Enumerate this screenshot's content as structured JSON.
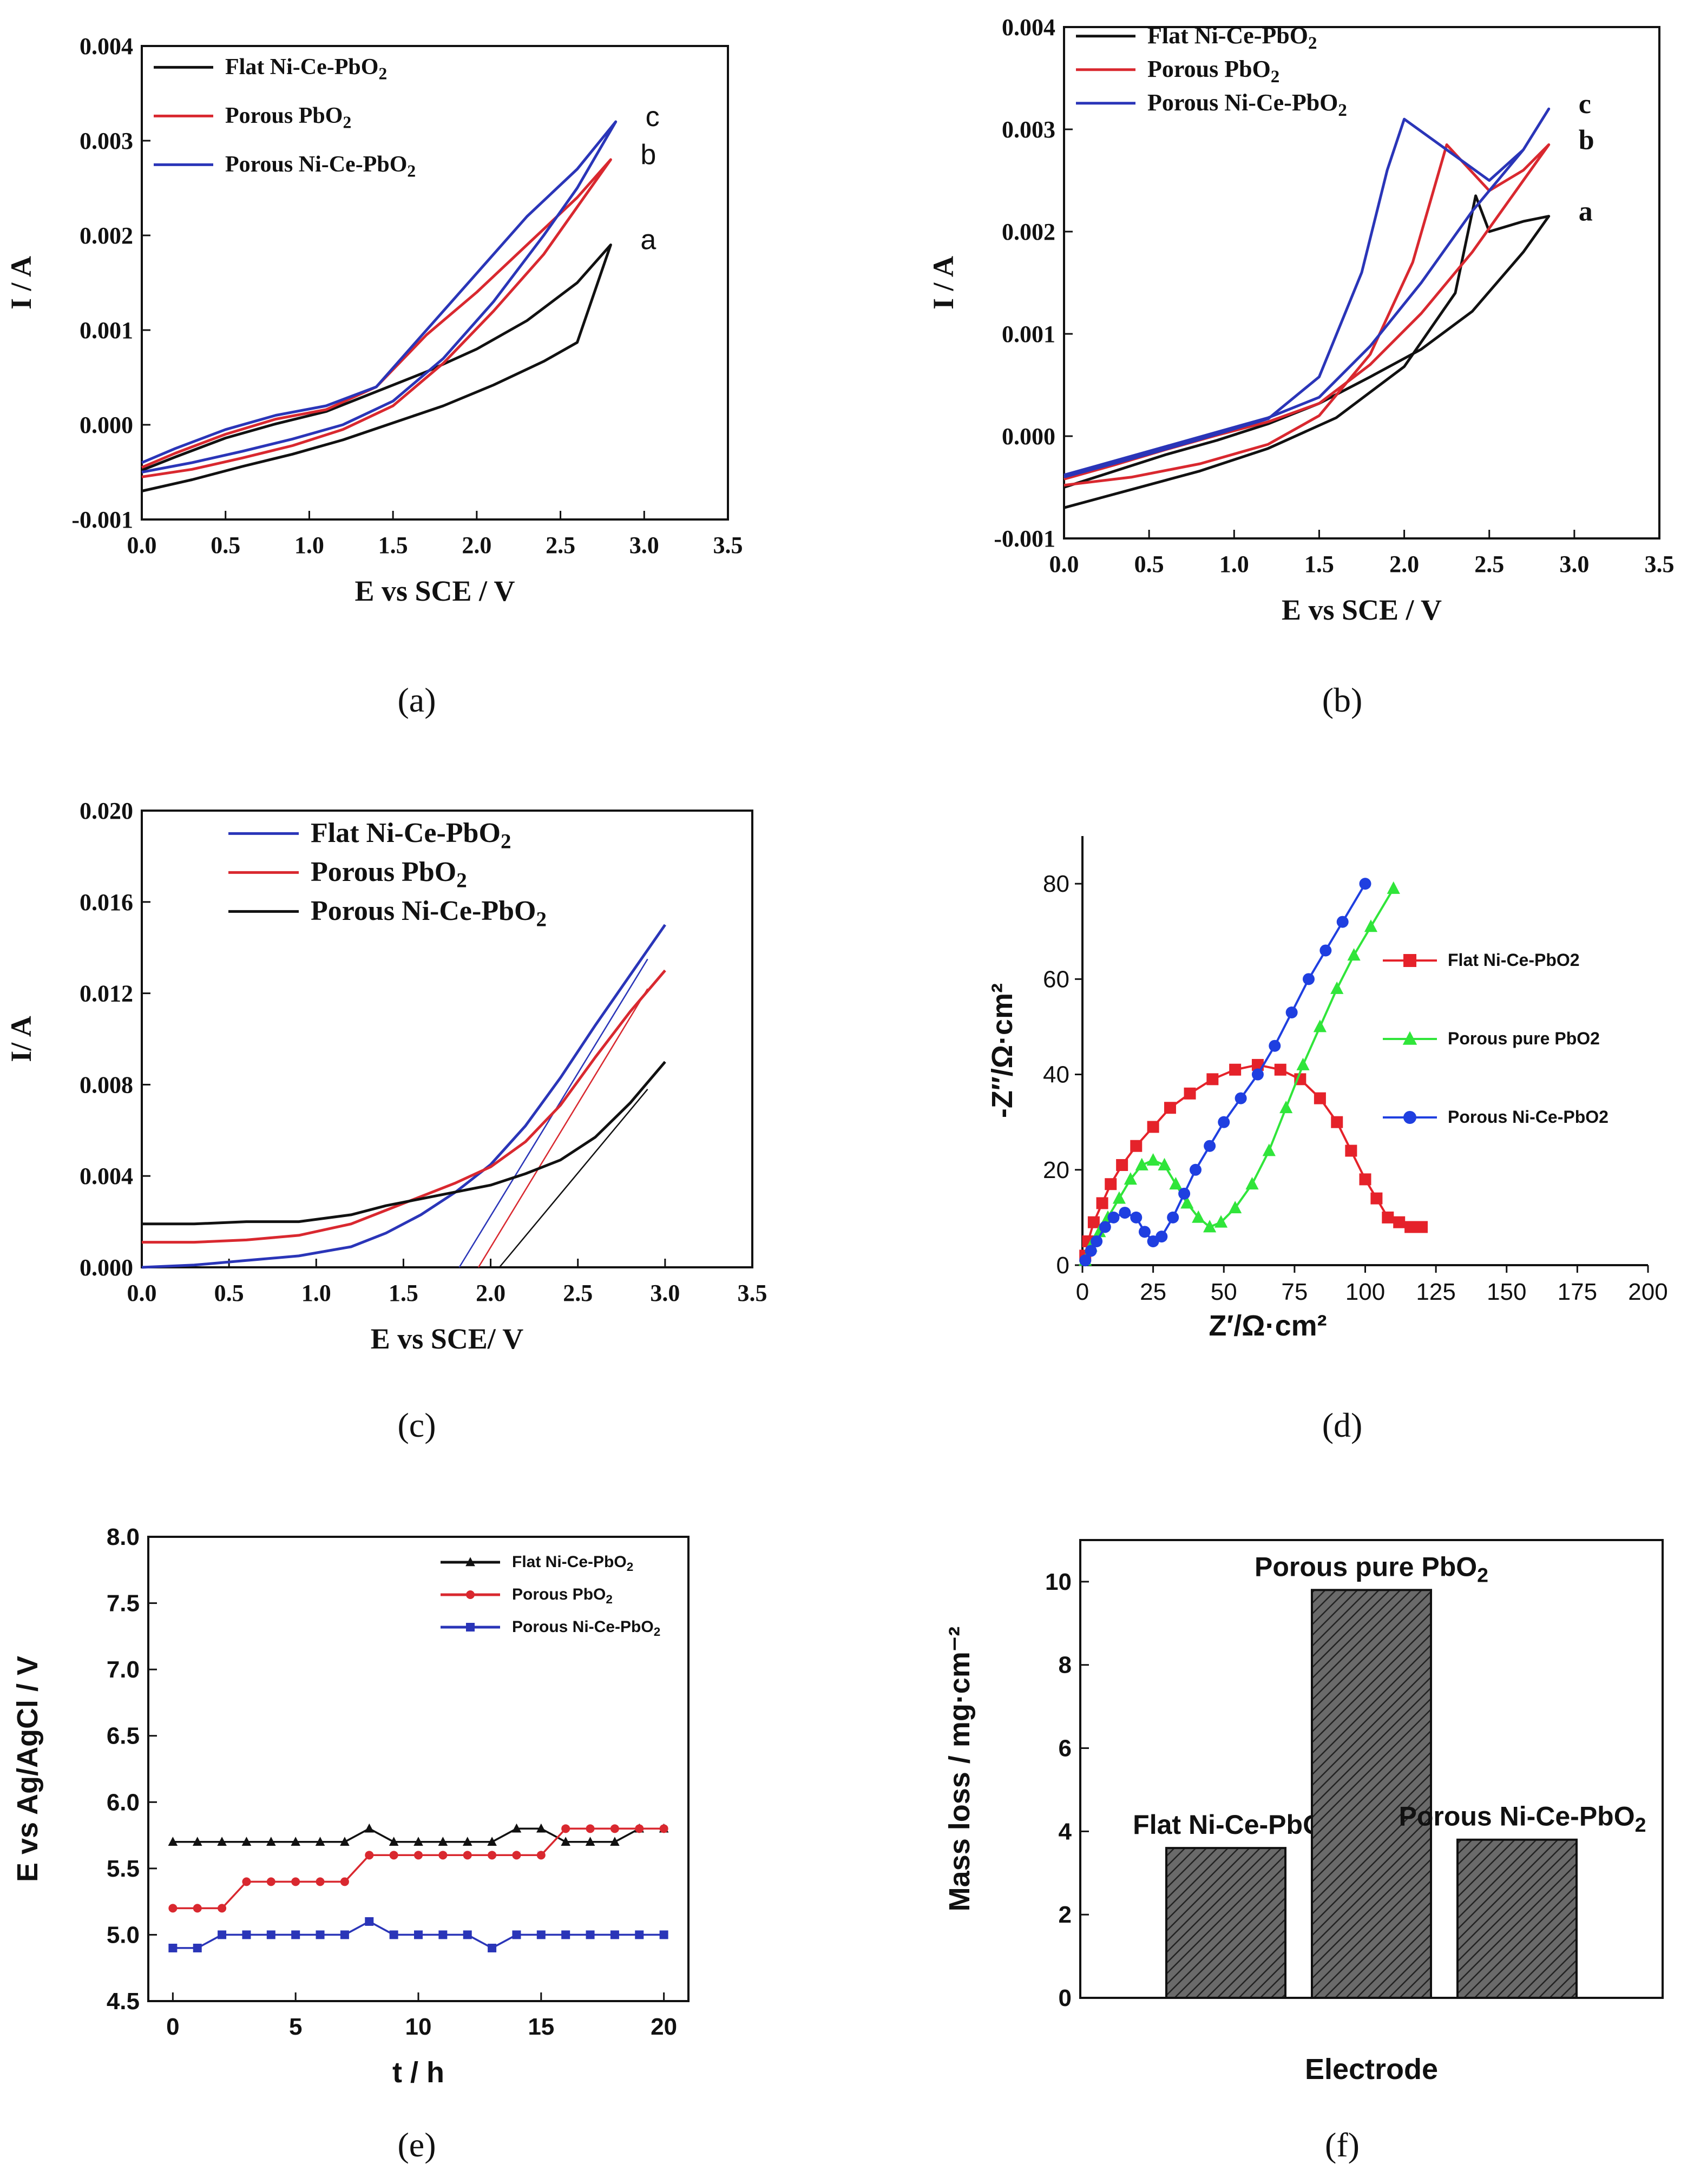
{
  "chart_data": [
    {
      "id": "a",
      "caption": "(a)",
      "type": "line",
      "xlabel": "E vs SCE / V",
      "ylabel": "I / A",
      "xlim": [
        0,
        3.5
      ],
      "ylim": [
        -0.001,
        0.004
      ],
      "xticks": [
        "0.0",
        "0.5",
        "1.0",
        "1.5",
        "2.0",
        "2.5",
        "3.0",
        "3.5"
      ],
      "yticks": [
        "-0.001",
        "0.000",
        "0.001",
        "0.002",
        "0.003",
        "0.004"
      ],
      "legend_position": "top-left",
      "series": [
        {
          "name": "Flat  Ni-Ce-PbO2",
          "color": "#111111",
          "end_label": "a",
          "x": [
            0,
            0.3,
            0.6,
            0.9,
            1.2,
            1.5,
            1.8,
            2.1,
            2.4,
            2.6,
            2.8,
            2.6,
            2.3,
            2.0,
            1.7,
            1.4,
            1.1,
            0.8,
            0.5,
            0.2,
            0
          ],
          "y": [
            -0.0007,
            -0.00058,
            -0.00044,
            -0.00031,
            -0.00016,
            2e-05,
            0.0002,
            0.00042,
            0.00067,
            0.00087,
            0.0019,
            0.0015,
            0.0011,
            0.0008,
            0.00056,
            0.00035,
            0.00014,
            1e-05,
            -0.00014,
            -0.00034,
            -0.00048
          ]
        },
        {
          "name": "Porous   PbO2",
          "color": "#d9282f",
          "end_label": "b",
          "x": [
            0,
            0.3,
            0.6,
            0.9,
            1.2,
            1.5,
            1.8,
            2.1,
            2.4,
            2.6,
            2.8,
            2.6,
            2.3,
            2.0,
            1.7,
            1.4,
            1.1,
            0.8,
            0.5,
            0.2,
            0
          ],
          "y": [
            -0.00055,
            -0.00047,
            -0.00035,
            -0.00022,
            -5e-05,
            0.0002,
            0.00065,
            0.0012,
            0.0018,
            0.0023,
            0.0028,
            0.0024,
            0.0019,
            0.0014,
            0.00095,
            0.0004,
            0.00016,
            6e-05,
            -0.0001,
            -0.0003,
            -0.00045
          ]
        },
        {
          "name": "Porous Ni-Ce-PbO2",
          "color": "#2a35b8",
          "end_label": "c",
          "x": [
            0,
            0.3,
            0.6,
            0.9,
            1.2,
            1.5,
            1.8,
            2.1,
            2.4,
            2.6,
            2.83,
            2.6,
            2.3,
            2.0,
            1.7,
            1.4,
            1.1,
            0.8,
            0.5,
            0.2,
            0
          ],
          "y": [
            -0.0005,
            -0.0004,
            -0.00028,
            -0.00015,
            0,
            0.00025,
            0.0007,
            0.0013,
            0.002,
            0.0025,
            0.0032,
            0.0027,
            0.0022,
            0.0016,
            0.001,
            0.0004,
            0.0002,
            0.0001,
            -5e-05,
            -0.00025,
            -0.0004
          ]
        }
      ]
    },
    {
      "id": "b",
      "caption": "(b)",
      "type": "line",
      "xlabel": "E vs SCE / V",
      "ylabel": "I / A",
      "xlim": [
        0,
        3.5
      ],
      "ylim": [
        -0.001,
        0.004
      ],
      "xticks": [
        "0.0",
        "0.5",
        "1.0",
        "1.5",
        "2.0",
        "2.5",
        "3.0",
        "3.5"
      ],
      "yticks": [
        "-0.001",
        "0.000",
        "0.001",
        "0.002",
        "0.003",
        "0.004"
      ],
      "legend_position": "top-left",
      "series": [
        {
          "name": "Flat  Ni-Ce-PbO2",
          "color": "#111111",
          "end_label": "a",
          "x": [
            0,
            0.4,
            0.8,
            1.2,
            1.6,
            2.0,
            2.3,
            2.42,
            2.5,
            2.7,
            2.85,
            2.7,
            2.4,
            2.1,
            1.8,
            1.5,
            1.2,
            0.9,
            0.6,
            0.3,
            0
          ],
          "y": [
            -0.0007,
            -0.00052,
            -0.00034,
            -0.00012,
            0.00018,
            0.00068,
            0.0014,
            0.00235,
            0.002,
            0.0021,
            0.00215,
            0.0018,
            0.00122,
            0.00085,
            0.00058,
            0.00032,
            0.00012,
            -4e-05,
            -0.00018,
            -0.00034,
            -0.0005
          ]
        },
        {
          "name": "Porous   PbO2",
          "color": "#d9282f",
          "end_label": "b",
          "x": [
            0,
            0.4,
            0.8,
            1.2,
            1.5,
            1.8,
            2.05,
            2.25,
            2.5,
            2.7,
            2.85,
            2.7,
            2.4,
            2.1,
            1.8,
            1.5,
            1.2,
            0.9,
            0.6,
            0.3,
            0
          ],
          "y": [
            -0.00048,
            -0.0004,
            -0.00027,
            -8e-05,
            0.0002,
            0.0008,
            0.0017,
            0.00285,
            0.0024,
            0.0026,
            0.00285,
            0.0025,
            0.0018,
            0.0012,
            0.0007,
            0.00032,
            0.00014,
            1e-05,
            -0.00013,
            -0.00028,
            -0.00042
          ]
        },
        {
          "name": "Porous Ni-Ce-PbO2",
          "color": "#2a35b8",
          "end_label": "c",
          "x": [
            0,
            0.4,
            0.8,
            1.2,
            1.5,
            1.75,
            1.9,
            2.0,
            2.5,
            2.7,
            2.85,
            2.7,
            2.4,
            2.1,
            1.8,
            1.5,
            1.2,
            0.9,
            0.6,
            0.3,
            0
          ],
          "y": [
            -0.0004,
            -0.00022,
            -3e-05,
            0.00017,
            0.00058,
            0.0016,
            0.0026,
            0.0031,
            0.0025,
            0.0028,
            0.0032,
            0.0028,
            0.0022,
            0.0015,
            0.00088,
            0.00038,
            0.00018,
            4e-05,
            -0.0001,
            -0.00024,
            -0.00038
          ]
        }
      ]
    },
    {
      "id": "c",
      "caption": "(c)",
      "type": "line",
      "xlabel": "E vs SCE/ V",
      "ylabel": "I/ A",
      "xlim": [
        0,
        3.5
      ],
      "ylim": [
        0,
        0.02
      ],
      "xticks": [
        "0.0",
        "0.5",
        "1.0",
        "1.5",
        "2.0",
        "2.5",
        "3.0",
        "3.5"
      ],
      "yticks": [
        "0.000",
        "0.004",
        "0.008",
        "0.012",
        "0.016",
        "0.020"
      ],
      "legend_position": "top-left",
      "series": [
        {
          "name": "Flat Ni-Ce-PbO2",
          "color": "#2a35b8",
          "x": [
            0,
            0.3,
            0.6,
            0.9,
            1.2,
            1.4,
            1.6,
            1.8,
            2.0,
            2.2,
            2.4,
            2.6,
            2.8,
            3.0
          ],
          "y": [
            0,
            0.0001,
            0.0003,
            0.0005,
            0.0009,
            0.0015,
            0.0023,
            0.0033,
            0.0045,
            0.0062,
            0.0083,
            0.0106,
            0.0128,
            0.015
          ]
        },
        {
          "name": "Porous PbO2",
          "color": "#d9282f",
          "x": [
            0,
            0.3,
            0.6,
            0.9,
            1.2,
            1.4,
            1.6,
            1.8,
            2.0,
            2.2,
            2.4,
            2.6,
            2.8,
            3.0
          ],
          "y": [
            0.0011,
            0.0011,
            0.0012,
            0.0014,
            0.0019,
            0.0025,
            0.0031,
            0.0037,
            0.0044,
            0.0055,
            0.0071,
            0.0092,
            0.0112,
            0.013
          ]
        },
        {
          "name": "Porous Ni-Ce-PbO2",
          "color": "#111111",
          "x": [
            0,
            0.3,
            0.6,
            0.9,
            1.2,
            1.4,
            1.6,
            1.8,
            2.0,
            2.2,
            2.4,
            2.6,
            2.8,
            3.0
          ],
          "y": [
            0.0019,
            0.0019,
            0.002,
            0.002,
            0.0023,
            0.0027,
            0.003,
            0.0033,
            0.0036,
            0.0041,
            0.0047,
            0.0057,
            0.0072,
            0.009
          ]
        }
      ],
      "tangents": [
        {
          "color": "#2a35b8",
          "x": [
            1.82,
            2.9
          ],
          "y": [
            0,
            0.0135
          ]
        },
        {
          "color": "#d9282f",
          "x": [
            1.93,
            2.9
          ],
          "y": [
            0,
            0.0122
          ]
        },
        {
          "color": "#111111",
          "x": [
            2.05,
            2.9
          ],
          "y": [
            0,
            0.0078
          ]
        }
      ]
    },
    {
      "id": "d",
      "caption": "(d)",
      "type": "scatter",
      "xlabel": "Z′/Ω·cm²",
      "ylabel": "-Z′′/Ω·cm²",
      "xlim": [
        0,
        200
      ],
      "ylim": [
        0,
        90
      ],
      "xticks": [
        "0",
        "25",
        "50",
        "75",
        "100",
        "125",
        "150",
        "175",
        "200"
      ],
      "yticks": [
        "0",
        "20",
        "40",
        "60",
        "80"
      ],
      "legend_position": "center-right",
      "series": [
        {
          "name": "Flat Ni-Ce-PbO2",
          "color": "#e5222a",
          "marker": "square",
          "x": [
            1,
            2,
            4,
            7,
            10,
            14,
            19,
            25,
            31,
            38,
            46,
            54,
            62,
            70,
            77,
            84,
            90,
            95,
            100,
            104,
            108,
            112,
            116,
            120
          ],
          "y": [
            2,
            5,
            9,
            13,
            17,
            21,
            25,
            29,
            33,
            36,
            39,
            41,
            42,
            41,
            39,
            35,
            30,
            24,
            18,
            14,
            10,
            9,
            8,
            8
          ]
        },
        {
          "name": "Porous pure PbO2",
          "color": "#30e53a",
          "marker": "triangle",
          "x": [
            1,
            3,
            6,
            9,
            13,
            17,
            21,
            25,
            29,
            33,
            37,
            41,
            45,
            49,
            54,
            60,
            66,
            72,
            78,
            84,
            90,
            96,
            102,
            110
          ],
          "y": [
            1,
            4,
            7,
            10,
            14,
            18,
            21,
            22,
            21,
            17,
            13,
            10,
            8,
            9,
            12,
            17,
            24,
            33,
            42,
            50,
            58,
            65,
            71,
            79
          ]
        },
        {
          "name": "Porous Ni-Ce-PbO2",
          "color": "#1f3fe0",
          "marker": "circle",
          "x": [
            1,
            3,
            5,
            8,
            11,
            15,
            19,
            22,
            25,
            28,
            32,
            36,
            40,
            45,
            50,
            56,
            62,
            68,
            74,
            80,
            86,
            92,
            100
          ],
          "y": [
            1,
            3,
            5,
            8,
            10,
            11,
            10,
            7,
            5,
            6,
            10,
            15,
            20,
            25,
            30,
            35,
            40,
            46,
            53,
            60,
            66,
            72,
            80
          ]
        }
      ]
    },
    {
      "id": "e",
      "caption": "(e)",
      "type": "line",
      "xlabel": "t / h",
      "ylabel": "E vs Ag/AgCl / V",
      "xlim": [
        -1,
        21
      ],
      "ylim": [
        4.5,
        8.0
      ],
      "xticks": [
        "0",
        "5",
        "10",
        "15",
        "20"
      ],
      "yticks": [
        "4.5",
        "5.0",
        "5.5",
        "6.0",
        "6.5",
        "7.0",
        "7.5",
        "8.0"
      ],
      "legend_position": "top-right",
      "series": [
        {
          "name": "Flat Ni-Ce-PbO2",
          "color": "#111111",
          "marker": "triangle",
          "x": [
            0,
            1,
            2,
            3,
            4,
            5,
            6,
            7,
            8,
            9,
            10,
            11,
            12,
            13,
            14,
            15,
            16,
            17,
            18,
            19,
            20
          ],
          "y": [
            5.7,
            5.7,
            5.7,
            5.7,
            5.7,
            5.7,
            5.7,
            5.7,
            5.8,
            5.7,
            5.7,
            5.7,
            5.7,
            5.7,
            5.8,
            5.8,
            5.7,
            5.7,
            5.7,
            5.8,
            5.8
          ]
        },
        {
          "name": "Porous PbO2",
          "color": "#d9282f",
          "marker": "circle",
          "x": [
            0,
            1,
            2,
            3,
            4,
            5,
            6,
            7,
            8,
            9,
            10,
            11,
            12,
            13,
            14,
            15,
            16,
            17,
            18,
            19,
            20
          ],
          "y": [
            5.2,
            5.2,
            5.2,
            5.4,
            5.4,
            5.4,
            5.4,
            5.4,
            5.6,
            5.6,
            5.6,
            5.6,
            5.6,
            5.6,
            5.6,
            5.6,
            5.8,
            5.8,
            5.8,
            5.8,
            5.8
          ]
        },
        {
          "name": "Porous Ni-Ce-PbO2",
          "color": "#2a35b8",
          "marker": "square",
          "x": [
            0,
            1,
            2,
            3,
            4,
            5,
            6,
            7,
            8,
            9,
            10,
            11,
            12,
            13,
            14,
            15,
            16,
            17,
            18,
            19,
            20
          ],
          "y": [
            4.9,
            4.9,
            5.0,
            5.0,
            5.0,
            5.0,
            5.0,
            5.0,
            5.1,
            5.0,
            5.0,
            5.0,
            5.0,
            4.9,
            5.0,
            5.0,
            5.0,
            5.0,
            5.0,
            5.0,
            5.0
          ]
        }
      ]
    },
    {
      "id": "f",
      "caption": "(f)",
      "type": "bar",
      "xlabel": "Electrode",
      "ylabel": "Mass loss / mg·cm⁻²",
      "ylim": [
        0,
        11
      ],
      "yticks": [
        "0",
        "2",
        "4",
        "6",
        "8",
        "10"
      ],
      "categories": [
        "Flat Ni-Ce-PbO2",
        "Porous pure PbO2",
        "Porous Ni-Ce-PbO2"
      ],
      "values": [
        3.6,
        9.8,
        3.8
      ],
      "bar_fill": "#555555"
    }
  ]
}
